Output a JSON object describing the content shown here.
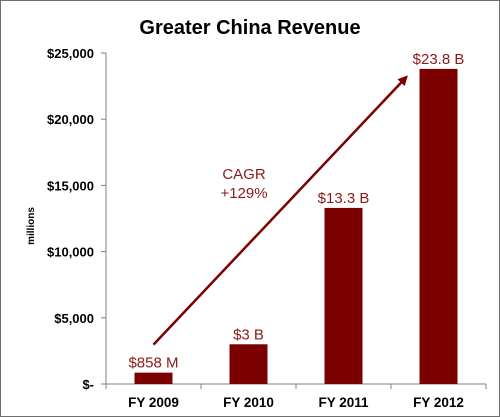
{
  "chart_data": {
    "type": "bar",
    "title": "Greater China Revenue",
    "xlabel": "",
    "ylabel": "millions",
    "categories": [
      "FY 2009",
      "FY 2010",
      "FY 2011",
      "FY 2012"
    ],
    "values": [
      858,
      3000,
      13300,
      23800
    ],
    "data_labels": [
      "$858 M",
      "$3 B",
      "$13.3 B",
      "$23.8 B"
    ],
    "ylim": [
      0,
      25000
    ],
    "yticks": [
      0,
      5000,
      10000,
      15000,
      20000,
      25000
    ],
    "ytick_labels": [
      "$-",
      "$5,000",
      "$10,000",
      "$15,000",
      "$20,000",
      "$25,000"
    ],
    "grid": false,
    "legend": "none",
    "annotation": {
      "lines": [
        "CAGR",
        "+129%"
      ],
      "arrow": "from first bar up to last bar"
    },
    "colors": {
      "bar": "#7b0000",
      "data_label": "#8b1a1a",
      "arrow": "#7b0000"
    }
  }
}
